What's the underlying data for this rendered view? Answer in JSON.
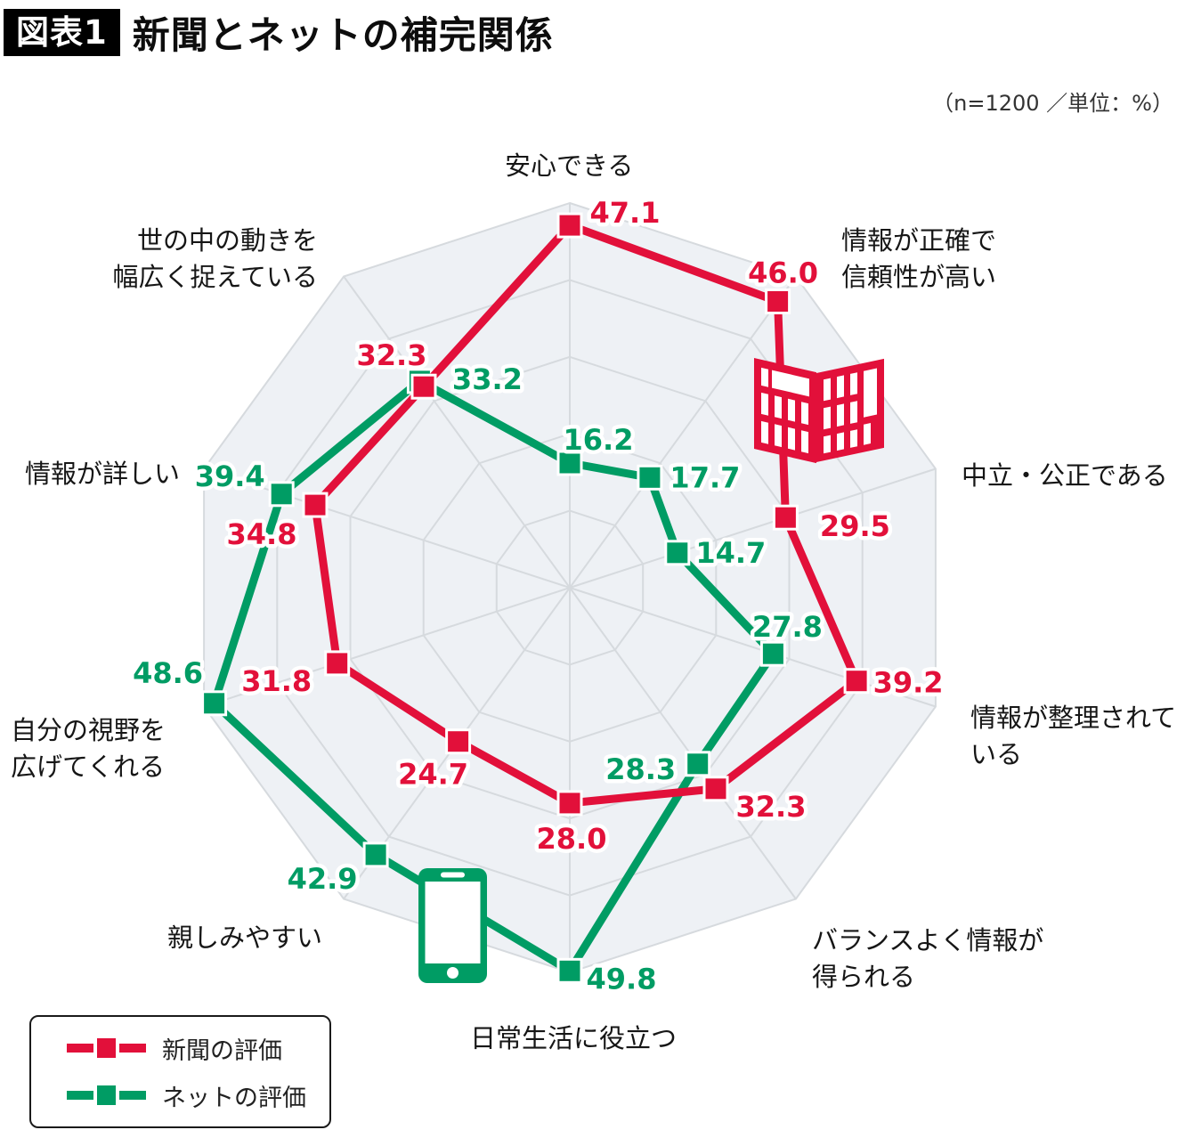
{
  "title": {
    "tag": "図表1",
    "text": "新聞とネットの補完関係"
  },
  "note": "（n=1200 ／単位：%）",
  "colors": {
    "newspaper": "#e2103a",
    "net": "#009c64",
    "grid_line": "#d6dade",
    "grid_fill": "#eef1f5",
    "text": "#141414"
  },
  "legend": [
    {
      "label": "新聞の評価",
      "series": "newspaper",
      "color": "#e2103a"
    },
    {
      "label": "ネットの評価",
      "series": "net",
      "color": "#009c64"
    }
  ],
  "chart_data": {
    "type": "radar",
    "title": "新聞とネットの補完関係",
    "sample_note": "（n=1200 ／単位：%）",
    "unit": "%",
    "max": 50,
    "ring_step": 10,
    "rings": 5,
    "grid": true,
    "legend_position": "bottom-left",
    "categories": [
      "安心できる",
      "情報が正確で\n信頼性が高い",
      "中立・公正である",
      "情報が整理されて\nいる",
      "バランスよく情報が\n得られる",
      "日常生活に役立つ",
      "親しみやすい",
      "自分の視野を\n広げてくれる",
      "情報が詳しい",
      "世の中の動きを\n幅広く捉えている"
    ],
    "series": [
      {
        "name": "新聞の評価",
        "color": "#e2103a",
        "values": [
          47.1,
          46.0,
          29.5,
          39.2,
          32.3,
          28.0,
          24.7,
          31.8,
          34.8,
          32.3
        ]
      },
      {
        "name": "ネットの評価",
        "color": "#009c64",
        "values": [
          16.2,
          17.7,
          14.7,
          27.8,
          28.3,
          49.8,
          42.9,
          48.6,
          39.4,
          33.2
        ]
      }
    ],
    "icons": [
      {
        "name": "newspaper-icon",
        "represents": "新聞"
      },
      {
        "name": "smartphone-icon",
        "represents": "ネット"
      }
    ]
  }
}
